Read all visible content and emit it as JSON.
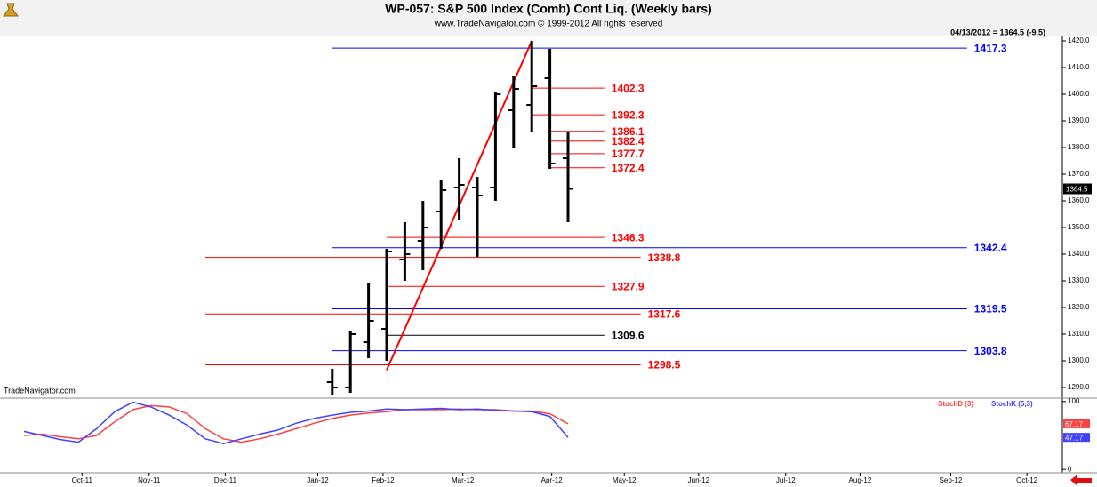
{
  "chart_data": [
    {
      "type": "ohlc",
      "title": "WP-057:  S&P 500 Index (Comb) Cont Liq.  (Weekly bars)",
      "subtitle": "www.TradeNavigator.com © 1999-2012 All rights reserved",
      "header": "04/13/2012 = 1364.5 (-9.5)",
      "watermark": "TradeNavigator.com",
      "color": "#000000",
      "x": [
        17,
        18,
        19,
        20,
        21,
        22,
        23,
        24,
        25,
        26,
        27,
        28,
        29,
        30
      ],
      "open": [
        1292,
        1290,
        1307,
        1312,
        1338,
        1345,
        1356,
        1365,
        1365,
        1365,
        1394,
        1396,
        1406,
        1376
      ],
      "high": [
        1297,
        1311,
        1329,
        1342,
        1352,
        1360,
        1368,
        1376,
        1369,
        1401,
        1407,
        1420,
        1417,
        1386
      ],
      "low": [
        1287,
        1288,
        1301,
        1300,
        1330,
        1334,
        1342,
        1353,
        1339,
        1360,
        1380,
        1386,
        1372,
        1352
      ],
      "close": [
        1290,
        1310,
        1315,
        1341,
        1340,
        1350,
        1364,
        1366,
        1362,
        1400,
        1402,
        1403,
        1374,
        1364.5
      ],
      "xlim": [
        0,
        57
      ],
      "xticks": [
        {
          "value": 3.2,
          "label": "Oct-11"
        },
        {
          "value": 6.9,
          "label": "Nov-11"
        },
        {
          "value": 11.1,
          "label": "Dec-11"
        },
        {
          "value": 16.2,
          "label": "Jan-12"
        },
        {
          "value": 19.8,
          "label": "Feb-12"
        },
        {
          "value": 24.2,
          "label": "Mar-12"
        },
        {
          "value": 29.1,
          "label": "Apr-12"
        },
        {
          "value": 33.1,
          "label": "May-12"
        },
        {
          "value": 37.2,
          "label": "Jun-12"
        },
        {
          "value": 42,
          "label": "Jul-12"
        },
        {
          "value": 46.1,
          "label": "Aug-12"
        },
        {
          "value": 51.1,
          "label": "Sep-12"
        },
        {
          "value": 55.3,
          "label": "Oct-12"
        }
      ],
      "ylim": [
        1286,
        1422
      ],
      "yticks": [
        {
          "value": 1290,
          "label": "1290.0"
        },
        {
          "value": 1300,
          "label": "1300.0"
        },
        {
          "value": 1310,
          "label": "1310.0"
        },
        {
          "value": 1320,
          "label": "1320.0"
        },
        {
          "value": 1330,
          "label": "1330.0"
        },
        {
          "value": 1340,
          "label": "1340.0"
        },
        {
          "value": 1350,
          "label": "1350.0"
        },
        {
          "value": 1360,
          "label": "1360.0"
        },
        {
          "value": 1370,
          "label": "1370.0"
        },
        {
          "value": 1380,
          "label": "1380.0"
        },
        {
          "value": 1390,
          "label": "1390.0"
        },
        {
          "value": 1400,
          "label": "1400.0"
        },
        {
          "value": 1410,
          "label": "1410.0"
        },
        {
          "value": 1420,
          "label": "1420.0"
        }
      ],
      "levels": [
        {
          "value": 1417.3,
          "color": "#0000ff",
          "start": 17,
          "end": 52
        },
        {
          "value": 1402.3,
          "color": "#ff0000",
          "start": 28,
          "end": 32
        },
        {
          "value": 1392.3,
          "color": "#ff0000",
          "start": 28,
          "end": 32
        },
        {
          "value": 1386.1,
          "color": "#ff0000",
          "start": 29,
          "end": 32
        },
        {
          "value": 1382.4,
          "color": "#ff0000",
          "start": 29,
          "end": 32
        },
        {
          "value": 1377.7,
          "color": "#ff0000",
          "start": 29,
          "end": 32
        },
        {
          "value": 1372.4,
          "color": "#ff0000",
          "start": 29,
          "end": 32
        },
        {
          "value": 1346.3,
          "color": "#ff0000",
          "start": 20,
          "end": 32
        },
        {
          "value": 1342.4,
          "color": "#0000ff",
          "start": 17,
          "end": 52
        },
        {
          "value": 1338.8,
          "color": "#ff0000",
          "start": 10,
          "end": 34
        },
        {
          "value": 1327.9,
          "color": "#ff0000",
          "start": 20,
          "end": 32
        },
        {
          "value": 1319.5,
          "color": "#0000ff",
          "start": 17,
          "end": 52
        },
        {
          "value": 1317.6,
          "color": "#ff0000",
          "start": 10,
          "end": 34
        },
        {
          "value": 1309.6,
          "color": "#000000",
          "start": 20,
          "end": 32
        },
        {
          "value": 1303.8,
          "color": "#0000ff",
          "start": 17,
          "end": 52
        },
        {
          "value": 1298.5,
          "color": "#ff0000",
          "start": 10,
          "end": 34
        }
      ],
      "trendline": {
        "x": [
          20,
          28
        ],
        "y": [
          1296.5,
          1420
        ],
        "color": "#ff0000"
      }
    },
    {
      "type": "line",
      "x": [
        0,
        1,
        2,
        3,
        4,
        5,
        6,
        7,
        8,
        9,
        10,
        11,
        12,
        13,
        14,
        15,
        16,
        17,
        18,
        19,
        20,
        21,
        22,
        23,
        24,
        25,
        26,
        27,
        28,
        29,
        30
      ],
      "xlim": [
        0,
        57
      ],
      "ylim": [
        -5,
        105
      ],
      "yticks": [
        0,
        100
      ],
      "series": [
        {
          "name": "StochD (3)",
          "color": "#ff4040",
          "values": [
            50,
            52,
            48,
            45,
            50,
            70,
            88,
            94,
            92,
            82,
            60,
            45,
            40,
            45,
            52,
            60,
            68,
            75,
            80,
            83,
            85,
            88,
            88,
            88,
            89,
            88,
            88,
            86,
            86,
            82,
            67.17
          ]
        },
        {
          "name": "StochK (5,3)",
          "color": "#4040ff",
          "values": [
            56,
            50,
            44,
            40,
            60,
            85,
            99,
            92,
            80,
            65,
            45,
            38,
            45,
            52,
            58,
            68,
            75,
            80,
            84,
            86,
            89,
            88,
            89,
            90,
            88,
            89,
            87,
            86,
            85,
            78,
            47.17
          ]
        }
      ]
    }
  ]
}
